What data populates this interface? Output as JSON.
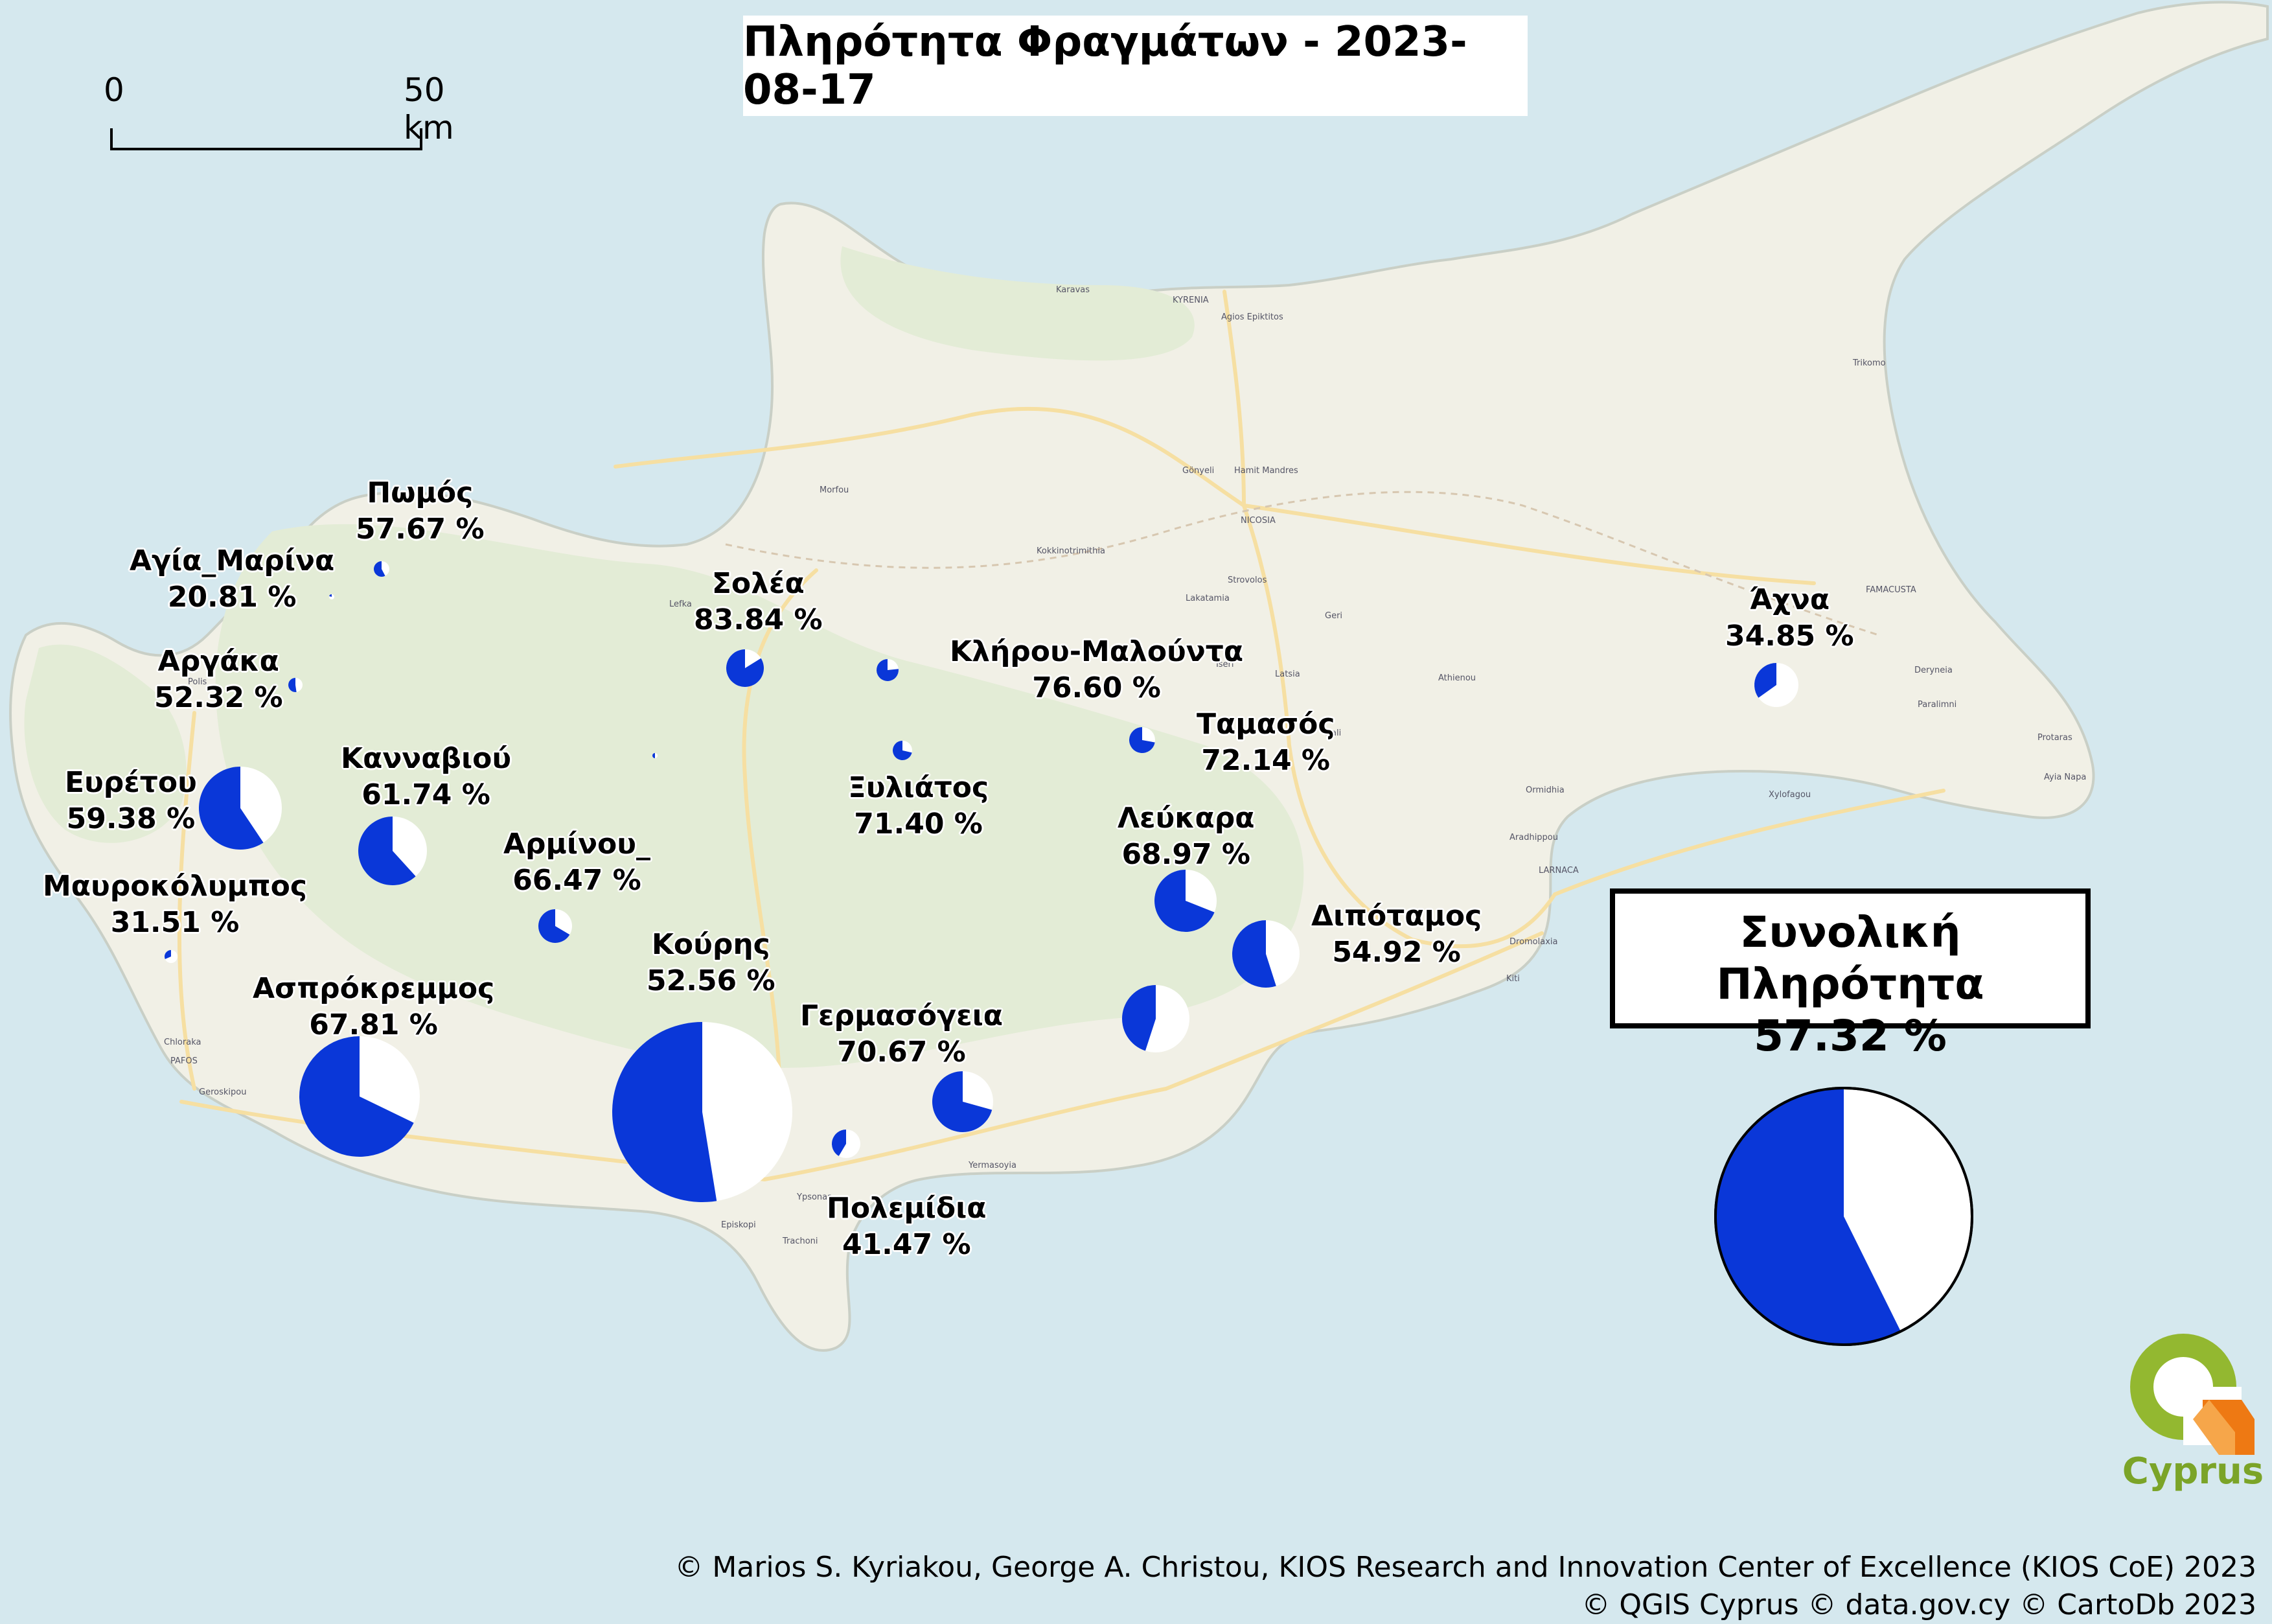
{
  "title": "Πληρότητα Φραγμάτων - 2023-08-17",
  "scale_bar": {
    "start_label": "0",
    "end_label": "50 km"
  },
  "colors": {
    "filled": "#0a37d8",
    "empty": "#ffffff",
    "sea": "#d5e8ee",
    "land": "#f1f0e6",
    "forest": "#e3ecd6",
    "road": "#f6dfa2"
  },
  "dams": [
    {
      "name": "Πωμός",
      "percent_text": "57.67 %",
      "fill": 57.67
    },
    {
      "name": "Αγία_Μαρίνα",
      "percent_text": "20.81 %",
      "fill": 20.81
    },
    {
      "name": "Αργάκα",
      "percent_text": "52.32 %",
      "fill": 52.32
    },
    {
      "name": "Ευρέτου",
      "percent_text": "59.38 %",
      "fill": 59.38
    },
    {
      "name": "Κανναβιού",
      "percent_text": "61.74 %",
      "fill": 61.74
    },
    {
      "name": "Μαυροκόλυμπος",
      "percent_text": "31.51 %",
      "fill": 31.51
    },
    {
      "name": "Ασπρόκρεμμος",
      "percent_text": "67.81 %",
      "fill": 67.81
    },
    {
      "name": "Αρμίνου_",
      "percent_text": "66.47 %",
      "fill": 66.47
    },
    {
      "name": "Σολέα",
      "percent_text": "83.84 %",
      "fill": 83.84
    },
    {
      "name": "Κλήρου-Μαλούντα",
      "percent_text": "76.60 %",
      "fill": 76.6
    },
    {
      "name": "Ταμασός",
      "percent_text": "72.14 %",
      "fill": 72.14
    },
    {
      "name": "Ξυλιάτος",
      "percent_text": "71.40 %",
      "fill": 71.4
    },
    {
      "name": "Λεύκαρα",
      "percent_text": "68.97 %",
      "fill": 68.97
    },
    {
      "name": "Κούρης",
      "percent_text": "52.56 %",
      "fill": 52.56
    },
    {
      "name": "Διπόταμος",
      "percent_text": "54.92 %",
      "fill": 54.92
    },
    {
      "name": "Γερμασόγεια",
      "percent_text": "70.67 %",
      "fill": 70.67
    },
    {
      "name": "Πολεμίδια",
      "percent_text": "41.47 %",
      "fill": 41.47
    },
    {
      "name": "Άχνα",
      "percent_text": "34.85 %",
      "fill": 34.85
    }
  ],
  "total": {
    "label": "Συνολική Πληρότητα",
    "percent_text": "57.32 %",
    "fill": 57.32
  },
  "place_names": [
    "KYRENIA",
    "Agios Epiktitos",
    "Karavas",
    "Trikomo",
    "Morfou",
    "Gönyeli",
    "Hamit Mandres",
    "NICOSIA",
    "Kokkinotrimithia",
    "Strovolos",
    "Lakatamia",
    "Geri",
    "Tseri",
    "Latsia",
    "Dali",
    "Athienou",
    "FAMACUSTA",
    "Deryneia",
    "Paralimni",
    "Protaras",
    "Ayia Napa",
    "Xylofagou",
    "Ormidhia",
    "Aradhippou",
    "LARNACA",
    "Dromolaxia",
    "Kiti",
    "Polis",
    "Chloraka",
    "PAFOS",
    "Geroskipou",
    "Yermasoyia",
    "Ypsonas",
    "Episkopi",
    "Trachoni",
    "Lefka"
  ],
  "logo": {
    "text": "Cyprus"
  },
  "credits": {
    "line1": "© Marios S. Kyriakou, George A. Christou, KIOS Research and Innovation Center of Excellence (KIOS CoE) 2023",
    "line2": "© QGIS Cyprus © data.gov.cy © CartoDb 2023"
  }
}
